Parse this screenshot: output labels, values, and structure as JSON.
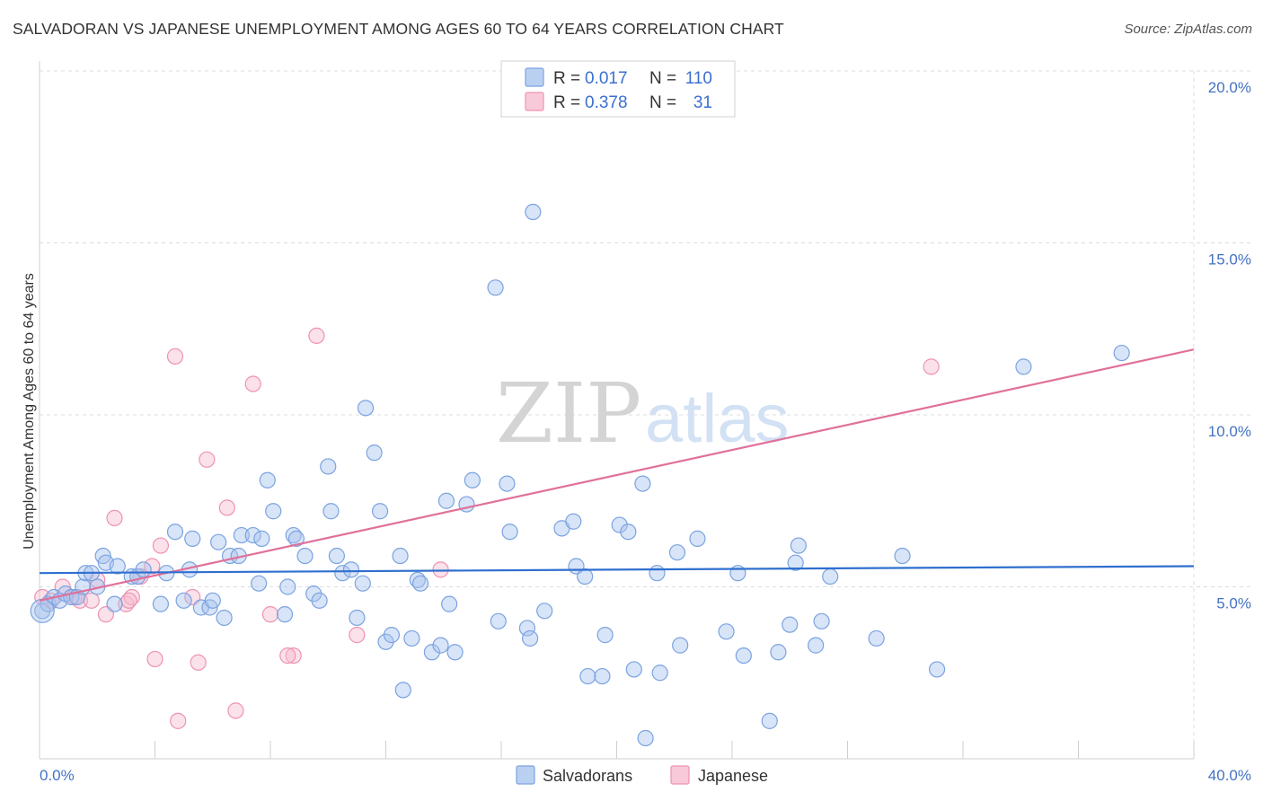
{
  "title": "SALVADORAN VS JAPANESE UNEMPLOYMENT AMONG AGES 60 TO 64 YEARS CORRELATION CHART",
  "source": "Source: ZipAtlas.com",
  "watermark": {
    "part1": "ZIP",
    "part2": "atlas"
  },
  "colors": {
    "salvadoran_fill": "#a9c4ee",
    "salvadoran_stroke": "#7aa3e0",
    "salvadoran_line": "#2f6fcf",
    "japanese_fill": "#f6bcd0",
    "japanese_stroke": "#ee93b1",
    "japanese_line": "#e0709a",
    "grid": "#dcdcdc",
    "axis_label": "#4472c4"
  },
  "legend": {
    "rows": [
      {
        "r_label": "R =",
        "r_value": "0.017",
        "n_label": "N =",
        "n_value": "110"
      },
      {
        "r_label": "R =",
        "r_value": "0.378",
        "n_label": "N =",
        "n_value": "31"
      }
    ]
  },
  "bottom_legend": {
    "salvadorans": "Salvadorans",
    "japanese": "Japanese"
  },
  "chart_data": {
    "type": "scatter",
    "title": "SALVADORAN VS JAPANESE UNEMPLOYMENT AMONG AGES 60 TO 64 YEARS CORRELATION CHART",
    "xlabel": "",
    "ylabel": "Unemployment Among Ages 60 to 64 years",
    "xlim": [
      0,
      40
    ],
    "ylim": [
      0,
      20
    ],
    "x_tick_labels": [
      "0.0%",
      "40.0%"
    ],
    "y_ticks": [
      5,
      10,
      15,
      20
    ],
    "y_tick_labels": [
      "5.0%",
      "10.0%",
      "15.0%",
      "20.0%"
    ],
    "grid": true,
    "legend_position": "top-center",
    "series": [
      {
        "name": "Salvadorans",
        "r": 0.017,
        "n": 110,
        "trend": {
          "x": [
            0,
            40
          ],
          "y": [
            5.4,
            5.6
          ]
        },
        "points": [
          [
            0.1,
            4.3
          ],
          [
            0.3,
            4.5
          ],
          [
            0.5,
            4.7
          ],
          [
            0.7,
            4.6
          ],
          [
            0.9,
            4.8
          ],
          [
            1.1,
            4.7
          ],
          [
            1.3,
            4.7
          ],
          [
            1.5,
            5.0
          ],
          [
            1.6,
            5.4
          ],
          [
            1.8,
            5.4
          ],
          [
            2.0,
            5.0
          ],
          [
            2.2,
            5.9
          ],
          [
            2.3,
            5.7
          ],
          [
            2.6,
            4.5
          ],
          [
            2.7,
            5.6
          ],
          [
            3.2,
            5.3
          ],
          [
            3.4,
            5.3
          ],
          [
            3.6,
            5.5
          ],
          [
            4.2,
            4.5
          ],
          [
            4.4,
            5.4
          ],
          [
            4.7,
            6.6
          ],
          [
            5.0,
            4.6
          ],
          [
            5.2,
            5.5
          ],
          [
            5.3,
            6.4
          ],
          [
            5.6,
            4.4
          ],
          [
            5.9,
            4.4
          ],
          [
            6.0,
            4.6
          ],
          [
            6.2,
            6.3
          ],
          [
            6.4,
            4.1
          ],
          [
            6.6,
            5.9
          ],
          [
            6.9,
            5.9
          ],
          [
            7.0,
            6.5
          ],
          [
            7.4,
            6.5
          ],
          [
            7.6,
            5.1
          ],
          [
            7.7,
            6.4
          ],
          [
            7.9,
            8.1
          ],
          [
            8.1,
            7.2
          ],
          [
            8.5,
            4.2
          ],
          [
            8.6,
            5.0
          ],
          [
            8.8,
            6.5
          ],
          [
            8.9,
            6.4
          ],
          [
            9.2,
            5.9
          ],
          [
            9.5,
            4.8
          ],
          [
            9.7,
            4.6
          ],
          [
            10.0,
            8.5
          ],
          [
            10.1,
            7.2
          ],
          [
            10.3,
            5.9
          ],
          [
            10.5,
            5.4
          ],
          [
            10.8,
            5.5
          ],
          [
            11.0,
            4.1
          ],
          [
            11.2,
            5.1
          ],
          [
            11.3,
            10.2
          ],
          [
            11.6,
            8.9
          ],
          [
            11.8,
            7.2
          ],
          [
            12.0,
            3.4
          ],
          [
            12.2,
            3.6
          ],
          [
            12.5,
            5.9
          ],
          [
            12.6,
            2.0
          ],
          [
            12.9,
            3.5
          ],
          [
            13.1,
            5.2
          ],
          [
            13.2,
            5.1
          ],
          [
            13.6,
            3.1
          ],
          [
            13.9,
            3.3
          ],
          [
            14.1,
            7.5
          ],
          [
            14.2,
            4.5
          ],
          [
            14.4,
            3.1
          ],
          [
            14.8,
            7.4
          ],
          [
            15.0,
            8.1
          ],
          [
            15.9,
            4.0
          ],
          [
            16.2,
            8.0
          ],
          [
            16.3,
            6.6
          ],
          [
            16.9,
            3.8
          ],
          [
            17.0,
            3.5
          ],
          [
            17.5,
            4.3
          ],
          [
            17.1,
            15.9
          ],
          [
            15.8,
            13.7
          ],
          [
            18.1,
            6.7
          ],
          [
            18.5,
            6.9
          ],
          [
            18.6,
            5.6
          ],
          [
            18.9,
            5.3
          ],
          [
            19.0,
            2.4
          ],
          [
            19.5,
            2.4
          ],
          [
            19.6,
            3.6
          ],
          [
            20.1,
            6.8
          ],
          [
            20.4,
            6.6
          ],
          [
            20.6,
            2.6
          ],
          [
            20.9,
            8.0
          ],
          [
            21.4,
            5.4
          ],
          [
            21.5,
            2.5
          ],
          [
            22.1,
            6.0
          ],
          [
            22.2,
            3.3
          ],
          [
            21.0,
            0.6
          ],
          [
            22.8,
            6.4
          ],
          [
            23.8,
            3.7
          ],
          [
            24.2,
            5.4
          ],
          [
            24.4,
            3.0
          ],
          [
            25.3,
            1.1
          ],
          [
            25.6,
            3.1
          ],
          [
            26.0,
            3.9
          ],
          [
            26.2,
            5.7
          ],
          [
            26.3,
            6.2
          ],
          [
            26.9,
            3.3
          ],
          [
            27.1,
            4.0
          ],
          [
            27.4,
            5.3
          ],
          [
            29.0,
            3.5
          ],
          [
            29.9,
            5.9
          ],
          [
            31.1,
            2.6
          ],
          [
            34.1,
            11.4
          ],
          [
            37.5,
            11.8
          ]
        ]
      },
      {
        "name": "Japanese",
        "r": 0.378,
        "n": 31,
        "trend": {
          "x": [
            0,
            40
          ],
          "y": [
            4.6,
            11.9
          ]
        },
        "points": [
          [
            0.1,
            4.7
          ],
          [
            0.4,
            4.6
          ],
          [
            0.8,
            5.0
          ],
          [
            1.2,
            4.7
          ],
          [
            1.4,
            4.6
          ],
          [
            1.8,
            4.6
          ],
          [
            2.0,
            5.2
          ],
          [
            2.3,
            4.2
          ],
          [
            2.6,
            7.0
          ],
          [
            3.0,
            4.5
          ],
          [
            3.2,
            4.7
          ],
          [
            3.5,
            5.3
          ],
          [
            3.9,
            5.6
          ],
          [
            4.2,
            6.2
          ],
          [
            4.0,
            2.9
          ],
          [
            4.7,
            11.7
          ],
          [
            4.8,
            1.1
          ],
          [
            5.3,
            4.7
          ],
          [
            5.5,
            2.8
          ],
          [
            5.8,
            8.7
          ],
          [
            6.5,
            7.3
          ],
          [
            6.8,
            1.4
          ],
          [
            7.4,
            10.9
          ],
          [
            8.0,
            4.2
          ],
          [
            8.8,
            3.0
          ],
          [
            8.6,
            3.0
          ],
          [
            9.6,
            12.3
          ],
          [
            11.0,
            3.6
          ],
          [
            13.9,
            5.5
          ],
          [
            30.9,
            11.4
          ],
          [
            3.1,
            4.6
          ]
        ]
      }
    ]
  }
}
